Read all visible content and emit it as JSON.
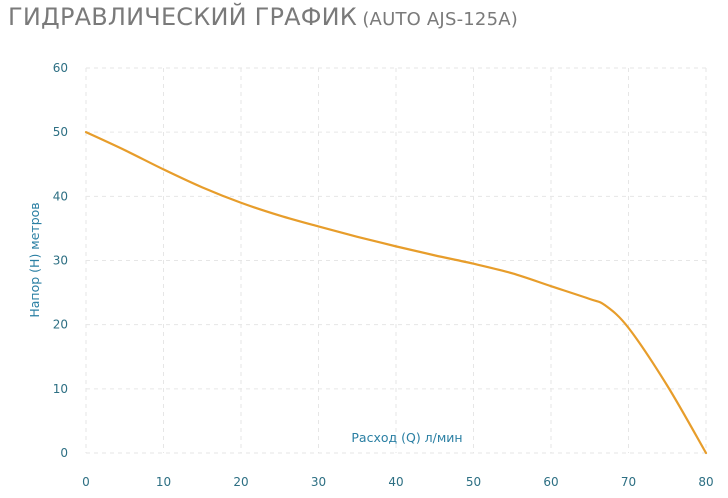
{
  "header": {
    "title": "ГИДРАВЛИЧЕСКИЙ ГРАФИК",
    "model": "(AUTO AJS-125A)"
  },
  "chart_data": {
    "type": "line",
    "title": "ГИДРАВЛИЧЕСКИЙ ГРАФИК (AUTO AJS-125A)",
    "xlabel": "Расход (Q) л/мин",
    "ylabel": "Напор (Н) метров",
    "xlim": [
      0,
      80
    ],
    "ylim": [
      0,
      60
    ],
    "x_ticks": [
      0,
      10,
      20,
      30,
      40,
      50,
      60,
      70,
      80
    ],
    "y_ticks": [
      0,
      10,
      20,
      30,
      40,
      50,
      60
    ],
    "grid": true,
    "series": [
      {
        "x": [
          0,
          5,
          10,
          15,
          20,
          25,
          30,
          35,
          40,
          45,
          50,
          55,
          60,
          65,
          67,
          70,
          75,
          80
        ],
        "y": [
          50,
          47.2,
          44.2,
          41.4,
          39,
          37,
          35.3,
          33.7,
          32.2,
          30.8,
          29.5,
          28,
          26,
          24,
          23,
          19.5,
          10.5,
          0
        ]
      }
    ],
    "colors": {
      "line": "#e79d2b",
      "ticks": "#2d6f83",
      "axis_labels": "#2a7fa3",
      "grid": "#e6e6e6",
      "title": "#7a7a7a"
    }
  }
}
